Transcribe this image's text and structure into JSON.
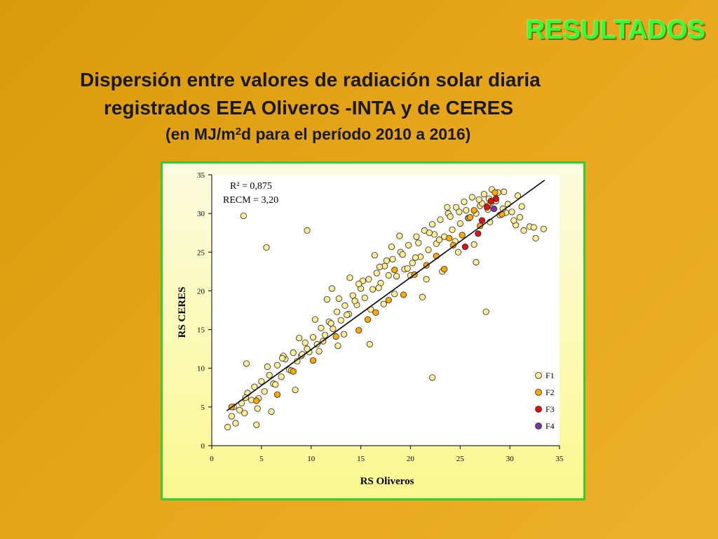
{
  "slide": {
    "heading": "RESULTADOS",
    "subtitle_line1": "Dispersión entre valores de radiación solar diaria",
    "subtitle_line2": "registrados EEA Oliveros -INTA y de CERES",
    "subtitle_line3_pre": "(en MJ/m",
    "subtitle_line3_sup": "2",
    "subtitle_line3_post": "d  para el período 2010 a 2016)"
  },
  "colors": {
    "heading": "#33ff33",
    "frame_border": "#33cc33",
    "F1": "#ffee99",
    "F2": "#ffaa00",
    "F3": "#dd1111",
    "F4": "#7733aa",
    "regression_line": "#000000"
  },
  "chart_data": {
    "type": "scatter",
    "title": "",
    "xlabel": "RS Oliveros",
    "ylabel": "RS CERES",
    "xlim": [
      0,
      35
    ],
    "ylim": [
      0,
      35
    ],
    "xticks": [
      0,
      5,
      10,
      15,
      20,
      25,
      30,
      35
    ],
    "yticks": [
      0,
      5,
      10,
      15,
      20,
      25,
      30,
      35
    ],
    "grid": false,
    "legend_position": "bottom-right",
    "annotations": [
      "R² = 0,875",
      "RECM = 3,20"
    ],
    "regression_line": {
      "x": [
        1.5,
        33.5
      ],
      "y": [
        4.5,
        34.3
      ]
    },
    "series": [
      {
        "name": "F1",
        "x": [
          1.6,
          2.0,
          2.4,
          2.8,
          3.0,
          3.3,
          3.6,
          4.0,
          4.3,
          4.7,
          5.0,
          5.3,
          5.8,
          6.2,
          6.6,
          7.0,
          7.4,
          7.8,
          8.2,
          8.6,
          9.0,
          9.4,
          9.8,
          10.2,
          10.6,
          11.0,
          11.4,
          11.8,
          12.2,
          12.6,
          13.0,
          13.4,
          13.8,
          14.2,
          14.6,
          15.0,
          15.4,
          15.8,
          16.2,
          16.6,
          17.0,
          17.4,
          17.8,
          18.2,
          18.6,
          19.0,
          19.4,
          19.8,
          20.2,
          20.6,
          21.0,
          21.4,
          21.8,
          22.2,
          22.6,
          23.0,
          23.4,
          23.8,
          24.2,
          24.6,
          25.0,
          25.4,
          25.8,
          26.2,
          26.6,
          27.0,
          27.4,
          27.8,
          28.2,
          28.6,
          29.0,
          29.4,
          29.8,
          30.2,
          30.6,
          31.0,
          31.4,
          32.0,
          32.6,
          33.4,
          2.2,
          3.4,
          4.6,
          5.6,
          6.4,
          7.2,
          8.0,
          8.8,
          9.6,
          10.4,
          11.2,
          12.0,
          12.8,
          13.6,
          14.4,
          15.2,
          16.0,
          16.8,
          17.6,
          18.4,
          19.2,
          20.0,
          20.8,
          21.6,
          22.4,
          23.2,
          24.0,
          24.8,
          25.6,
          26.4,
          27.2,
          28.0,
          28.8,
          29.6,
          30.4,
          31.2,
          3.2,
          3.5,
          5.5,
          9.6,
          4.5,
          22.2,
          28.1,
          27.6,
          32.4,
          26.6,
          12.1,
          16.4,
          18.9,
          23.7,
          13.3,
          7.1,
          10.8,
          6.0,
          8.4,
          15.9,
          17.3,
          19.7,
          21.2,
          24.5,
          14.8,
          11.6,
          9.1,
          12.7,
          20.5,
          22.9,
          25.9,
          27.9,
          29.3,
          30.8,
          18.1,
          16.9,
          13.9,
          21.9,
          24.9,
          26.9
        ],
        "y": [
          2.4,
          3.8,
          2.9,
          4.6,
          5.5,
          4.2,
          6.8,
          5.9,
          7.6,
          6.1,
          8.3,
          7.0,
          9.1,
          8.0,
          10.4,
          8.9,
          11.2,
          9.8,
          12.0,
          10.9,
          11.6,
          13.3,
          12.1,
          14.0,
          13.1,
          15.2,
          14.3,
          16.0,
          15.1,
          17.3,
          16.2,
          18.1,
          17.0,
          19.4,
          18.2,
          20.3,
          19.1,
          21.5,
          20.2,
          22.3,
          21.0,
          23.2,
          22.0,
          24.1,
          21.9,
          25.0,
          22.8,
          25.9,
          23.6,
          27.0,
          24.4,
          27.8,
          25.3,
          28.6,
          26.1,
          29.2,
          27.0,
          30.0,
          27.9,
          30.8,
          28.7,
          31.5,
          29.4,
          32.1,
          30.0,
          31.0,
          32.5,
          30.5,
          33.1,
          31.6,
          29.8,
          32.8,
          31.2,
          30.2,
          28.5,
          29.5,
          27.8,
          28.3,
          26.8,
          28.0,
          5.0,
          6.2,
          4.8,
          10.2,
          7.9,
          11.6,
          9.7,
          13.9,
          12.5,
          16.3,
          13.5,
          15.8,
          19.0,
          16.9,
          18.7,
          21.3,
          17.6,
          20.4,
          23.9,
          19.6,
          24.7,
          22.0,
          26.2,
          21.5,
          27.3,
          22.5,
          29.6,
          25.0,
          30.4,
          26.0,
          31.3,
          28.9,
          32.7,
          30.1,
          29.1,
          30.9,
          29.7,
          10.6,
          25.6,
          27.8,
          2.7,
          8.8,
          31.4,
          17.3,
          28.2,
          23.7,
          20.3,
          24.6,
          27.1,
          30.8,
          14.4,
          11.3,
          12.2,
          4.4,
          7.2,
          13.1,
          18.3,
          22.9,
          19.2,
          26.4,
          20.9,
          18.9,
          11.8,
          12.9,
          24.3,
          26.6,
          29.4,
          31.9,
          30.6,
          32.3,
          25.7,
          23.1,
          21.7,
          27.5,
          30.2,
          31.8
        ]
      },
      {
        "name": "F2",
        "x": [
          2.0,
          4.5,
          6.6,
          8.2,
          10.2,
          12.5,
          14.8,
          16.5,
          17.8,
          19.3,
          20.4,
          21.6,
          22.6,
          23.4,
          24.3,
          25.2,
          26.0,
          27.0,
          27.8,
          28.5,
          29.2,
          18.4,
          15.7,
          23.9,
          26.4
        ],
        "y": [
          5.0,
          5.8,
          6.6,
          9.6,
          11.0,
          14.1,
          14.9,
          17.2,
          18.8,
          19.5,
          22.1,
          23.3,
          24.5,
          22.8,
          25.9,
          27.2,
          29.5,
          28.4,
          31.0,
          32.7,
          29.9,
          22.7,
          16.3,
          26.8,
          30.4
        ]
      },
      {
        "name": "F3",
        "x": [
          25.5,
          26.8,
          27.7,
          28.1,
          28.6,
          27.2
        ],
        "y": [
          25.7,
          27.4,
          30.8,
          31.6,
          31.9,
          29.1
        ]
      },
      {
        "name": "F4",
        "x": [
          28.4
        ],
        "y": [
          30.6
        ]
      }
    ]
  }
}
